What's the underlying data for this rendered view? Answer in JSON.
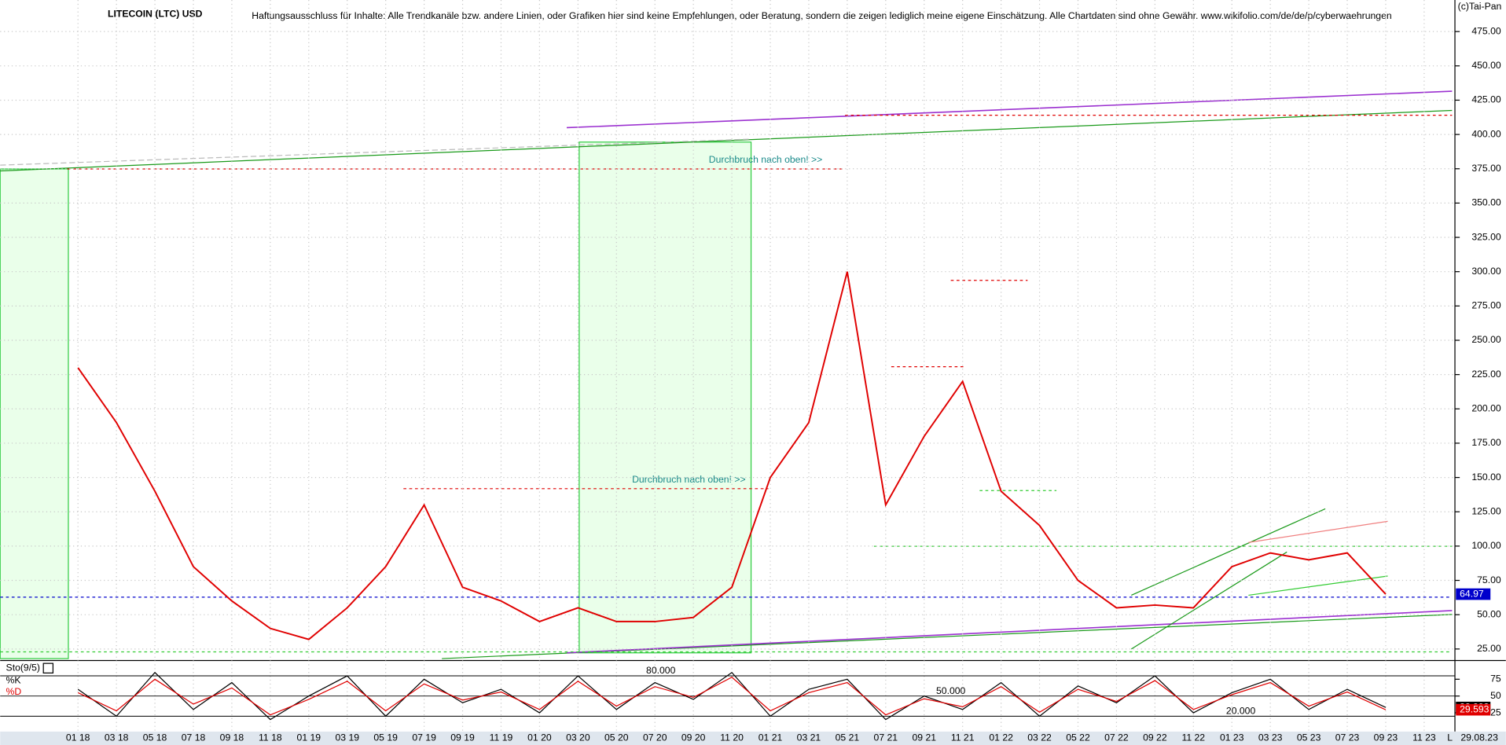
{
  "chart_data": [
    {
      "type": "line",
      "title": "LITECOIN (LTC) USD",
      "subtitle": "Haftungsausschluss für Inhalte: Alle Trendkanäle bzw. andere Linien, oder Grafiken hier sind keine Empfehlungen, oder Beratung, sondern die zeigen lediglich meine eigene Einschätzung. Alle Chartdaten sind ohne Gewähr.  www.wikifolio.com/de/de/p/cyberwaehrungen",
      "copyright": "(c)Tai-Pan",
      "categories": [
        "01 18",
        "03 18",
        "05 18",
        "07 18",
        "09 18",
        "11 18",
        "01 19",
        "03 19",
        "05 19",
        "07 19",
        "09 19",
        "11 19",
        "01 20",
        "03 20",
        "05 20",
        "07 20",
        "09 20",
        "11 20",
        "01 21",
        "03 21",
        "05 21",
        "07 21",
        "09 21",
        "11 21",
        "01 22",
        "03 22",
        "05 22",
        "07 22",
        "09 22",
        "11 22",
        "01 23",
        "03 23",
        "05 23",
        "07 23",
        "09 23",
        "11 23"
      ],
      "series": [
        {
          "name": "LTC",
          "color": "#e00000",
          "values": [
            230,
            190,
            140,
            85,
            60,
            40,
            32,
            55,
            85,
            130,
            70,
            60,
            45,
            55,
            45,
            45,
            48,
            70,
            150,
            190,
            300,
            130,
            180,
            220,
            140,
            115,
            75,
            55,
            57,
            55,
            85,
            95,
            90,
            95,
            64.97,
            null
          ]
        }
      ],
      "ylim": [
        18,
        498
      ],
      "yticks": [
        {
          "value": 25,
          "label": "25.00"
        },
        {
          "value": 50,
          "label": "50.00"
        },
        {
          "value": 75,
          "label": "75.00"
        },
        {
          "value": 100,
          "label": "100.00"
        },
        {
          "value": 125,
          "label": "125.00"
        },
        {
          "value": 150,
          "label": "150.00"
        },
        {
          "value": 175,
          "label": "175.00"
        },
        {
          "value": 200,
          "label": "200.00"
        },
        {
          "value": 225,
          "label": "225.00"
        },
        {
          "value": 250,
          "label": "250.00"
        },
        {
          "value": 275,
          "label": "275.00"
        },
        {
          "value": 300,
          "label": "300.00"
        },
        {
          "value": 325,
          "label": "325.00"
        },
        {
          "value": 350,
          "label": "350.00"
        },
        {
          "value": 375,
          "label": "375.00"
        },
        {
          "value": 400,
          "label": "400.00"
        },
        {
          "value": 425,
          "label": "425.00"
        },
        {
          "value": 450,
          "label": "450.00"
        },
        {
          "value": 475,
          "label": "475.00"
        }
      ],
      "grid": true,
      "annotations": [
        "Durchbruch nach oben! >>",
        "Durchbruch nach oben! >>"
      ],
      "date_label": "29.08.23",
      "corner_label": "L"
    },
    {
      "type": "line",
      "title": "Sto(9/5)",
      "series": [
        {
          "name": "%K",
          "color": "#000000",
          "values": [
            60,
            20,
            85,
            30,
            70,
            15,
            50,
            80,
            20,
            75,
            40,
            60,
            25,
            80,
            30,
            70,
            45,
            85,
            20,
            60,
            75,
            15,
            50,
            30,
            70,
            20,
            65,
            40,
            80,
            25,
            55,
            75,
            30,
            60,
            32.993,
            null
          ]
        },
        {
          "name": "%D",
          "color": "#e00000",
          "values": [
            55,
            28,
            75,
            38,
            62,
            22,
            45,
            72,
            28,
            68,
            44,
            56,
            30,
            72,
            35,
            64,
            48,
            78,
            28,
            55,
            70,
            22,
            46,
            34,
            64,
            26,
            60,
            42,
            73,
            30,
            52,
            70,
            35,
            56,
            29.593,
            null
          ]
        }
      ],
      "ylim": [
        0,
        100
      ],
      "yticks": [
        25,
        50,
        75
      ],
      "levels": [
        {
          "value": 80,
          "label": "80.000"
        },
        {
          "value": 50,
          "label": "50.000"
        },
        {
          "value": 20,
          "label": "20.000"
        }
      ]
    }
  ]
}
